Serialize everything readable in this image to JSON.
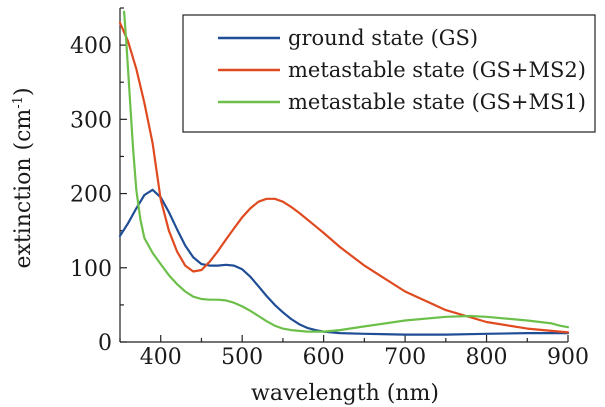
{
  "chart_data": {
    "type": "line",
    "xlabel": "wavelength (nm)",
    "ylabel": {
      "main": "extinction (cm",
      "sup": "-1",
      "close": ")"
    },
    "xlim": [
      350,
      900
    ],
    "ylim": [
      0,
      450
    ],
    "x_ticks": [
      400,
      500,
      600,
      700,
      800,
      900
    ],
    "y_ticks": [
      0,
      100,
      200,
      300,
      400
    ],
    "x_tick_labels": [
      "400",
      "500",
      "600",
      "700",
      "800",
      "900"
    ],
    "y_tick_labels": [
      "0",
      "100",
      "200",
      "300",
      "400"
    ],
    "legend_position": "top-right",
    "grid": false,
    "series": [
      {
        "name": "ground state (GS)",
        "color": "#1f4e96",
        "x": [
          350,
          360,
          370,
          380,
          390,
          400,
          410,
          420,
          430,
          440,
          450,
          460,
          470,
          480,
          490,
          500,
          510,
          520,
          530,
          540,
          550,
          560,
          570,
          580,
          590,
          600,
          620,
          650,
          700,
          750,
          800,
          850,
          900
        ],
        "y": [
          143,
          160,
          180,
          198,
          205,
          195,
          175,
          152,
          130,
          114,
          105,
          103,
          103,
          104,
          103,
          98,
          88,
          75,
          62,
          50,
          40,
          31,
          24,
          19,
          16,
          14,
          12,
          11,
          10,
          10,
          11,
          12,
          12
        ]
      },
      {
        "name": "metastable state (GS+MS2)",
        "color": "#e04a20",
        "x": [
          350,
          360,
          370,
          380,
          390,
          400,
          410,
          420,
          430,
          440,
          450,
          460,
          470,
          480,
          490,
          500,
          510,
          520,
          530,
          540,
          550,
          560,
          570,
          580,
          590,
          600,
          620,
          650,
          700,
          750,
          800,
          850,
          900
        ],
        "y": [
          430,
          405,
          368,
          322,
          268,
          192,
          150,
          122,
          103,
          95,
          97,
          108,
          122,
          138,
          153,
          168,
          180,
          189,
          193,
          193,
          189,
          182,
          174,
          165,
          156,
          147,
          128,
          103,
          68,
          43,
          27,
          18,
          13
        ]
      },
      {
        "name": "metastable state (GS+MS1)",
        "color": "#6cc04a",
        "x": [
          355,
          358,
          362,
          366,
          370,
          375,
          380,
          390,
          400,
          410,
          420,
          430,
          440,
          450,
          460,
          470,
          480,
          490,
          500,
          510,
          520,
          530,
          540,
          550,
          560,
          570,
          580,
          590,
          600,
          620,
          650,
          700,
          750,
          780,
          800,
          850,
          880,
          890,
          900
        ],
        "y": [
          445,
          400,
          330,
          262,
          205,
          165,
          140,
          120,
          105,
          90,
          78,
          68,
          61,
          58,
          57,
          57,
          56,
          53,
          48,
          42,
          35,
          28,
          22,
          18,
          16,
          15,
          14,
          14,
          14,
          16,
          21,
          29,
          34,
          35,
          34,
          29,
          25,
          22,
          20
        ]
      }
    ]
  }
}
